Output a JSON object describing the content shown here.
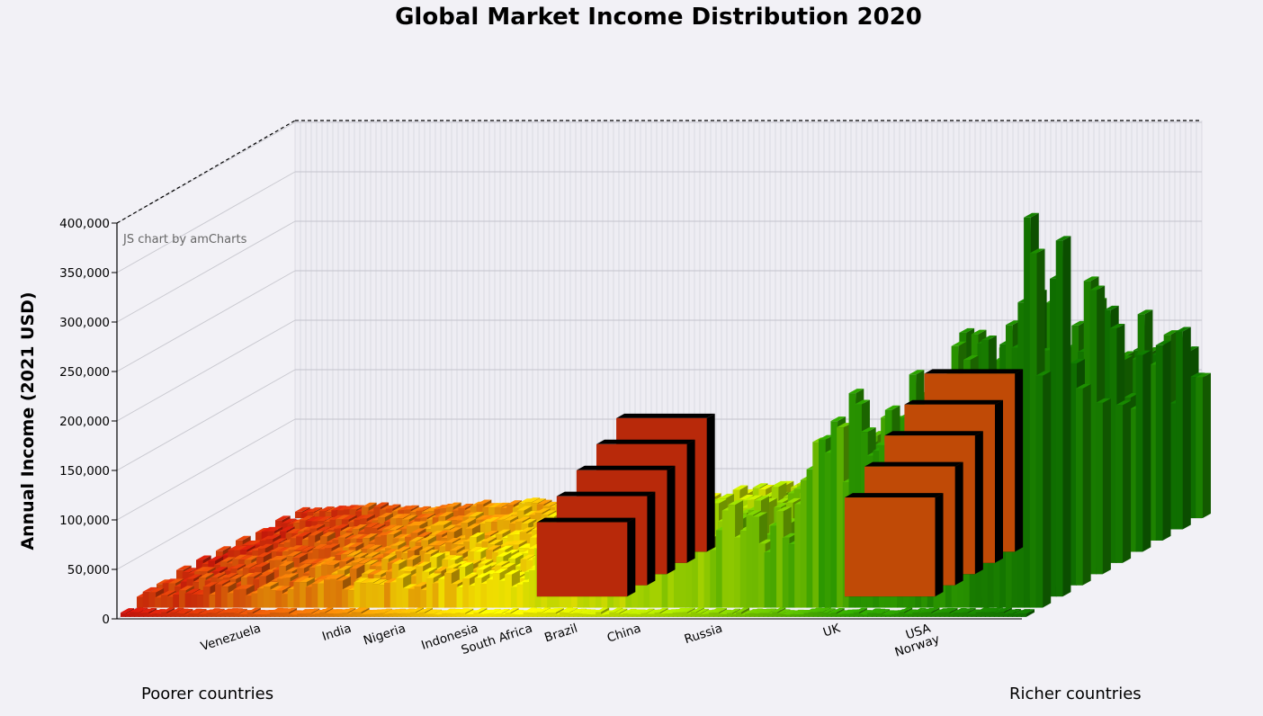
{
  "credit": "JS chart by amCharts",
  "footer": {
    "left": "Poorer countries",
    "right": "Richer countries"
  },
  "chart_data": {
    "type": "bar",
    "title": "Global Market Income Distribution 2020",
    "ylabel": "Annual Income (2021 USD)",
    "xlabel": "",
    "ylim": [
      0,
      400000
    ],
    "yticks": [
      "0",
      "50,000",
      "100,000",
      "150,000",
      "200,000",
      "250,000",
      "300,000",
      "350,000",
      "400,000"
    ],
    "three_d": true,
    "grid": true,
    "color_scale": [
      "#c1120a",
      "#d96c08",
      "#f0e000",
      "#9fd000",
      "#2e9a00",
      "#0f6e00"
    ],
    "categories": [
      "Venezuela",
      "India",
      "Nigeria",
      "Indonesia",
      "South Africa",
      "Brazil",
      "China",
      "Russia",
      "UK",
      "USA",
      "Norway"
    ],
    "category_positions": [
      0.13,
      0.23,
      0.29,
      0.37,
      0.43,
      0.48,
      0.55,
      0.64,
      0.77,
      0.87,
      0.88
    ],
    "decile_peaks": [
      {
        "x": 0.02,
        "v": 18000
      },
      {
        "x": 0.08,
        "v": 25000
      },
      {
        "x": 0.13,
        "v": 22000
      },
      {
        "x": 0.19,
        "v": 30000
      },
      {
        "x": 0.23,
        "v": 32000
      },
      {
        "x": 0.27,
        "v": 38000
      },
      {
        "x": 0.31,
        "v": 30000
      },
      {
        "x": 0.34,
        "v": 36000
      },
      {
        "x": 0.38,
        "v": 34000
      },
      {
        "x": 0.42,
        "v": 40000
      },
      {
        "x": 0.44,
        "v": 65000
      },
      {
        "x": 0.47,
        "v": 50000
      },
      {
        "x": 0.5,
        "v": 56000
      },
      {
        "x": 0.53,
        "v": 93000
      },
      {
        "x": 0.55,
        "v": 75000
      },
      {
        "x": 0.58,
        "v": 85000
      },
      {
        "x": 0.61,
        "v": 110000
      },
      {
        "x": 0.63,
        "v": 90000
      },
      {
        "x": 0.66,
        "v": 120000
      },
      {
        "x": 0.69,
        "v": 100000
      },
      {
        "x": 0.72,
        "v": 105000
      },
      {
        "x": 0.745,
        "v": 175000
      },
      {
        "x": 0.77,
        "v": 205000
      },
      {
        "x": 0.79,
        "v": 225000
      },
      {
        "x": 0.81,
        "v": 200000
      },
      {
        "x": 0.83,
        "v": 230000
      },
      {
        "x": 0.85,
        "v": 260000
      },
      {
        "x": 0.87,
        "v": 245000
      },
      {
        "x": 0.89,
        "v": 300000
      },
      {
        "x": 0.91,
        "v": 285000
      },
      {
        "x": 0.93,
        "v": 320000
      },
      {
        "x": 0.95,
        "v": 345000
      },
      {
        "x": 0.97,
        "v": 400000
      },
      {
        "x": 0.99,
        "v": 410000
      }
    ],
    "blocks": [
      {
        "x0": 0.42,
        "x1": 0.52,
        "v": 150000,
        "color": "#b8290a"
      },
      {
        "x0": 0.76,
        "x1": 0.86,
        "v": 200000,
        "color": "#c04a06"
      }
    ]
  }
}
